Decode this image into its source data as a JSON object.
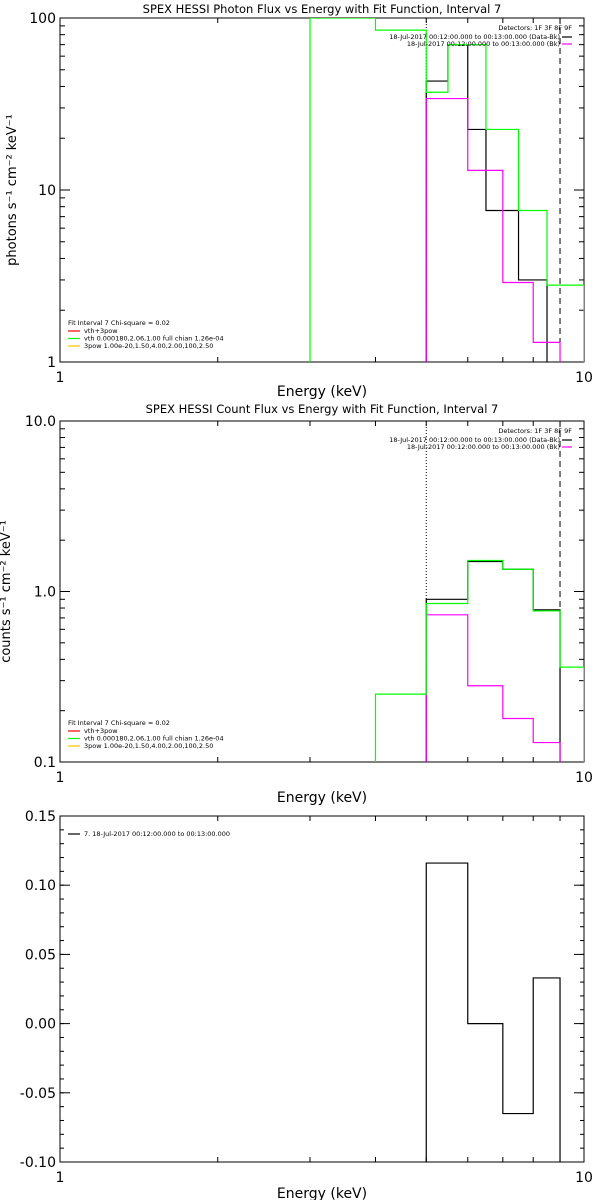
{
  "chart_data": [
    {
      "type": "line",
      "title": "SPEX HESSI Photon Flux vs Energy with Fit Function, Interval 7",
      "xlabel": "Energy (keV)",
      "ylabel": "photons s⁻¹ cm⁻² keV⁻¹",
      "xscale": "log",
      "yscale": "log",
      "xlim": [
        1,
        10
      ],
      "ylim": [
        1,
        100
      ],
      "xticks": [
        {
          "v": 1,
          "label": "1"
        },
        {
          "v": 10,
          "label": "10"
        }
      ],
      "yticks": [
        {
          "v": 1,
          "label": "1"
        },
        {
          "v": 10,
          "label": "10"
        },
        {
          "v": 100,
          "label": "100"
        }
      ],
      "grid": false,
      "vlines": [
        {
          "x": 5.0,
          "style": "dotted"
        },
        {
          "x": 9.0,
          "style": "dashed"
        }
      ],
      "header": {
        "detectors": "Detectors: 1F 3F 8F 9F",
        "lines": [
          {
            "text": "18-Jul-2017 00:12:00.000 to 00:13:00.000 (Data-Bk)",
            "color": "#000000"
          },
          {
            "text": "18-Jul-2017 00:12:00.000 to 00:13:00.000 (Bk)",
            "color": "#ff00ff"
          }
        ]
      },
      "legend_position": "bottom-left",
      "legend": {
        "title": "Fit Interval  7    Chi-square = 0.02",
        "items": [
          {
            "text": "vth+3pow",
            "color": "#ff0000"
          },
          {
            "text": "vth 0.000180,2.06,1.00  full chian 1.26e-04",
            "color": "#00ff00"
          },
          {
            "text": "3pow 1.00e-20,1.50,4.00,2.00,100,2.50",
            "color": "#ffc000"
          }
        ]
      },
      "series": [
        {
          "color": "#000000",
          "edges": [
            5.0,
            5.5,
            6.0,
            6.5,
            7.5,
            8.5
          ],
          "values": [
            43,
            70,
            22.5,
            7.6,
            3.0
          ]
        },
        {
          "color": "#ff00ff",
          "edges": [
            5.0,
            6.0,
            7.0,
            8.0,
            9.0
          ],
          "values": [
            34,
            13,
            2.9,
            1.3
          ]
        },
        {
          "color": "#00ff00",
          "edges": [
            3.0,
            4.0,
            5.0,
            5.5,
            6.5,
            7.5,
            8.5,
            10.0
          ],
          "values": [
            100,
            85,
            37,
            70,
            22.5,
            7.6,
            2.8
          ]
        }
      ]
    },
    {
      "type": "line",
      "title": "SPEX HESSI Count Flux vs Energy with Fit Function, Interval 7",
      "xlabel": "Energy (keV)",
      "ylabel": "counts s⁻¹ cm⁻² keV⁻¹",
      "xscale": "log",
      "yscale": "log",
      "xlim": [
        1,
        10
      ],
      "ylim": [
        0.1,
        10
      ],
      "xticks": [
        {
          "v": 1,
          "label": "1"
        },
        {
          "v": 10,
          "label": "10"
        }
      ],
      "yticks": [
        {
          "v": 0.1,
          "label": "0.1"
        },
        {
          "v": 1,
          "label": "1.0"
        },
        {
          "v": 10,
          "label": "10.0"
        }
      ],
      "grid": false,
      "vlines": [
        {
          "x": 5.0,
          "style": "dotted"
        },
        {
          "x": 9.0,
          "style": "dashed"
        }
      ],
      "header": {
        "detectors": "Detectors: 1F 3F 8F 9F",
        "lines": [
          {
            "text": "18-Jul-2017 00:12:00.000 to 00:13:00.000 (Data-Bk)",
            "color": "#000000"
          },
          {
            "text": "18-Jul-2017 00:12:00.000 to 00:13:00.000 (Bk)",
            "color": "#ff00ff"
          }
        ]
      },
      "legend_position": "bottom-left",
      "legend": {
        "title": "Fit Interval  7    Chi-square = 0.02",
        "items": [
          {
            "text": "vth+3pow",
            "color": "#ff0000"
          },
          {
            "text": "vth 0.000180,2.06,1.00  full chian 1.26e-04",
            "color": "#00ff00"
          },
          {
            "text": "3pow 1.00e-20,1.50,4.00,2.00,100,2.50",
            "color": "#ffc000"
          }
        ]
      },
      "series": [
        {
          "color": "#000000",
          "edges": [
            5.0,
            6.0,
            7.0,
            8.0,
            9.0
          ],
          "values": [
            0.9,
            1.5,
            1.35,
            0.78
          ]
        },
        {
          "color": "#ff00ff",
          "edges": [
            5.0,
            6.0,
            7.0,
            8.0,
            9.0
          ],
          "values": [
            0.73,
            0.28,
            0.18,
            0.13
          ]
        },
        {
          "color": "#00ff00",
          "edges": [
            4.0,
            5.0,
            6.0,
            7.0,
            8.0,
            9.0,
            10.0
          ],
          "values": [
            0.25,
            0.85,
            1.52,
            1.35,
            0.77,
            0.36
          ]
        }
      ]
    },
    {
      "type": "line",
      "title": "",
      "xlabel": "Energy (keV)",
      "ylabel": "",
      "xscale": "log",
      "yscale": "linear",
      "xlim": [
        1,
        10
      ],
      "ylim": [
        -0.1,
        0.15
      ],
      "xticks": [
        {
          "v": 1,
          "label": "1"
        },
        {
          "v": 10,
          "label": "10"
        }
      ],
      "yticks": [
        {
          "v": -0.1,
          "label": "-0.10"
        },
        {
          "v": -0.05,
          "label": "-0.05"
        },
        {
          "v": 0,
          "label": "0.00"
        },
        {
          "v": 0.05,
          "label": "0.05"
        },
        {
          "v": 0.1,
          "label": "0.10"
        },
        {
          "v": 0.15,
          "label": "0.15"
        }
      ],
      "grid": false,
      "vlines": [],
      "legend_position": "top-left",
      "legend": {
        "title": "",
        "items": [
          {
            "text": "7. 18-Jul-2017 00:12:00.000 to 00:13:00.000",
            "color": "#000000"
          }
        ]
      },
      "series": [
        {
          "color": "#000000",
          "edges": [
            5.0,
            6.0,
            7.0,
            8.0,
            9.0
          ],
          "values": [
            0.116,
            0.0,
            -0.065,
            0.033
          ],
          "base": -0.1
        }
      ]
    }
  ]
}
